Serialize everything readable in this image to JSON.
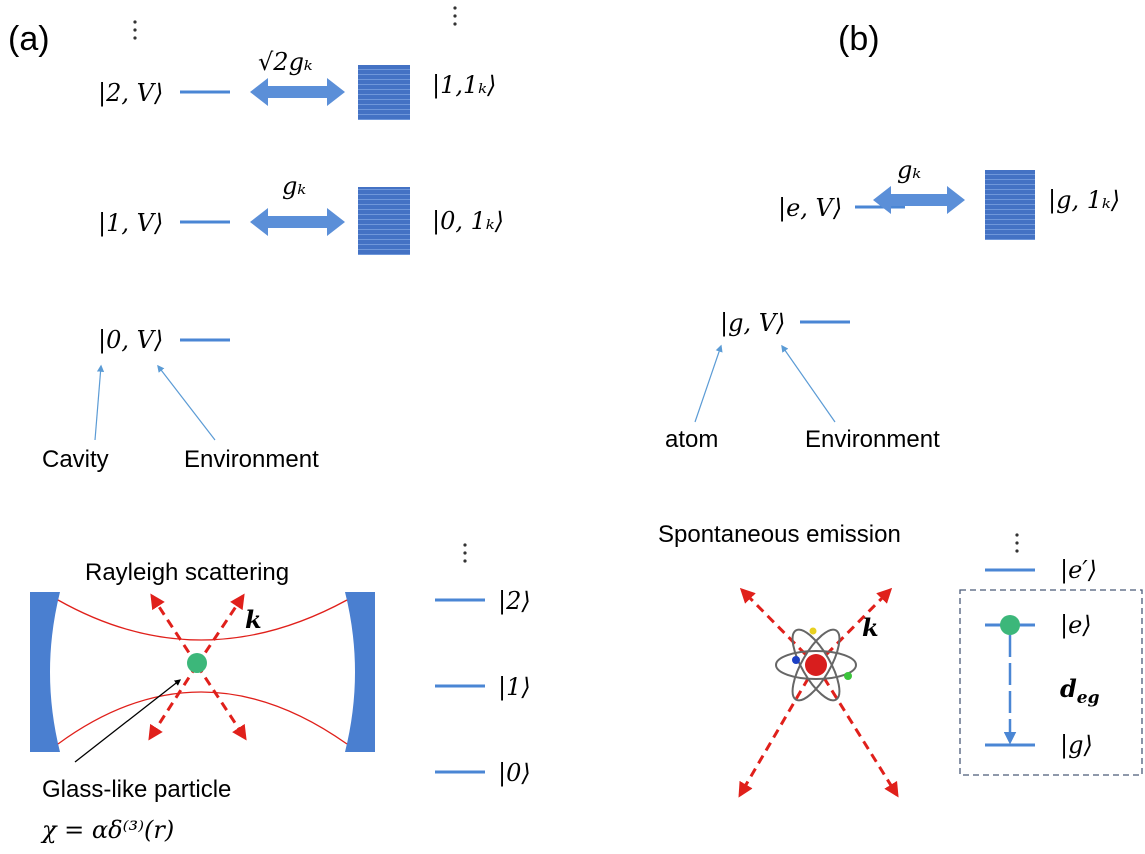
{
  "panel_a": {
    "label": "(a)",
    "states": [
      {
        "cavity_state": "|2, V⟩",
        "coupling": "√2gₖ",
        "continuum_state": "|1,1ₖ⟩"
      },
      {
        "cavity_state": "|1, V⟩",
        "coupling": "gₖ",
        "continuum_state": "|0, 1ₖ⟩"
      },
      {
        "cavity_state": "|0, V⟩"
      }
    ],
    "pointer_labels": [
      "Cavity",
      "Environment"
    ],
    "scattering_title": "Rayleigh scattering",
    "wavevector": "k",
    "particle_label": "Glass-like particle",
    "susceptibility": "χ = αδ⁽³⁾(r)",
    "levels": [
      "|2⟩",
      "|1⟩",
      "|0⟩"
    ]
  },
  "panel_b": {
    "label": "(b)",
    "states": [
      {
        "atom_state": "|e, V⟩",
        "coupling": "gₖ",
        "continuum_state": "|g, 1ₖ⟩"
      },
      {
        "atom_state": "|g, V⟩"
      }
    ],
    "pointer_labels": [
      "atom",
      "Environment"
    ],
    "emission_title": "Spontaneous emission",
    "wavevector": "k",
    "levels": [
      "|e′⟩",
      "|e⟩",
      "|g⟩"
    ],
    "dipole": {
      "symbol": "d",
      "subscript": "eg"
    }
  }
}
